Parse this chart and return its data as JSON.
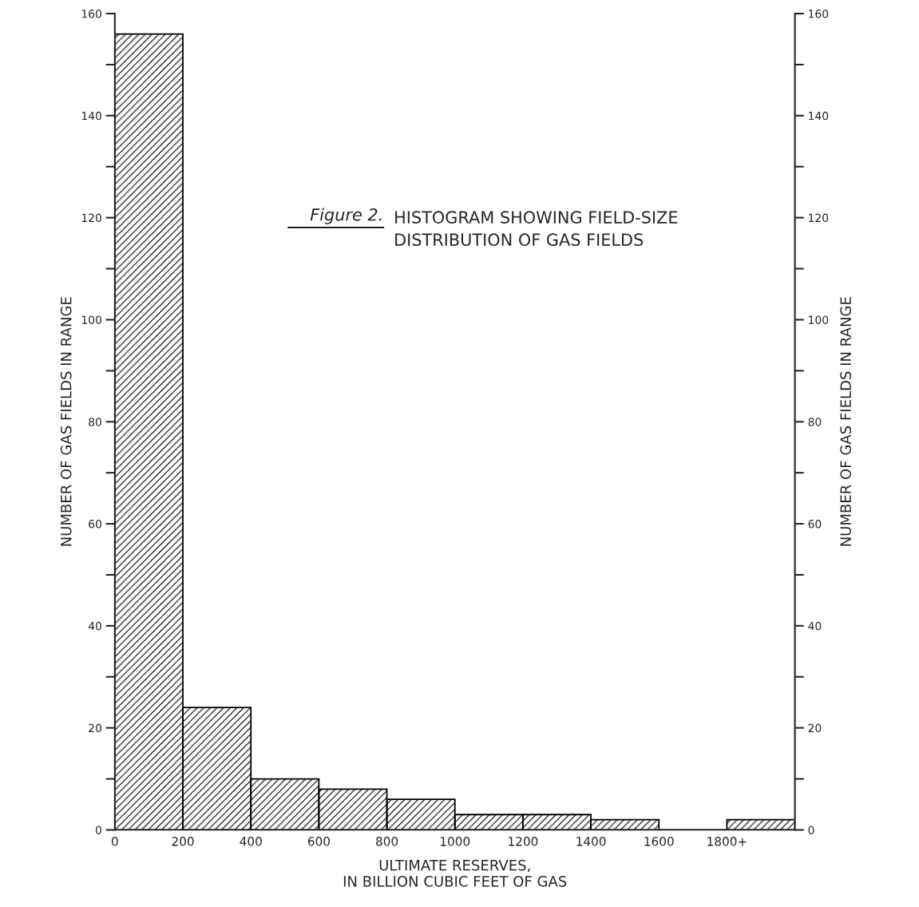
{
  "chart_data": {
    "type": "histogram",
    "title": "HISTOGRAM SHOWING FIELD-SIZE\nDISTRIBUTION OF GAS FIELDS",
    "annotations": [
      "Figure 2."
    ],
    "xlabel": "ULTIMATE RESERVES,\nIN BILLION CUBIC FEET OF GAS",
    "ylabel": "NUMBER OF GAS FIELDS IN RANGE",
    "y2label": "NUMBER OF GAS FIELDS IN RANGE",
    "bins": [
      0,
      200,
      400,
      600,
      800,
      1000,
      1200,
      1400,
      1600,
      1800,
      2000
    ],
    "values": [
      156,
      24,
      10,
      8,
      6,
      3,
      3,
      2,
      0,
      2
    ],
    "color": "#000000",
    "xlim": [
      0,
      2000
    ],
    "xticks": [
      0,
      200,
      400,
      600,
      800,
      1000,
      1200,
      1400,
      1600,
      {
        "value": 1800,
        "label": "1800+"
      }
    ],
    "ylim": [
      0,
      160
    ],
    "yticks": [
      0,
      {
        "value": 10,
        "label": null
      },
      20,
      {
        "value": 30,
        "label": null
      },
      40,
      {
        "value": 50,
        "label": null
      },
      60,
      {
        "value": 70,
        "label": null
      },
      80,
      {
        "value": 90,
        "label": null
      },
      100,
      {
        "value": 110,
        "label": null
      },
      120,
      {
        "value": 130,
        "label": null
      },
      140,
      {
        "value": 150,
        "label": null
      },
      160
    ],
    "y2lim": [
      0,
      160
    ],
    "y2ticks": [
      0,
      {
        "value": 10,
        "label": null
      },
      20,
      {
        "value": 30,
        "label": null
      },
      40,
      {
        "value": 50,
        "label": null
      },
      60,
      {
        "value": 70,
        "label": null
      },
      80,
      {
        "value": 90,
        "label": null
      },
      100,
      {
        "value": 110,
        "label": null
      },
      120,
      {
        "value": 130,
        "label": null
      },
      140,
      {
        "value": 150,
        "label": null
      },
      160
    ],
    "grid": false,
    "legend": false
  }
}
